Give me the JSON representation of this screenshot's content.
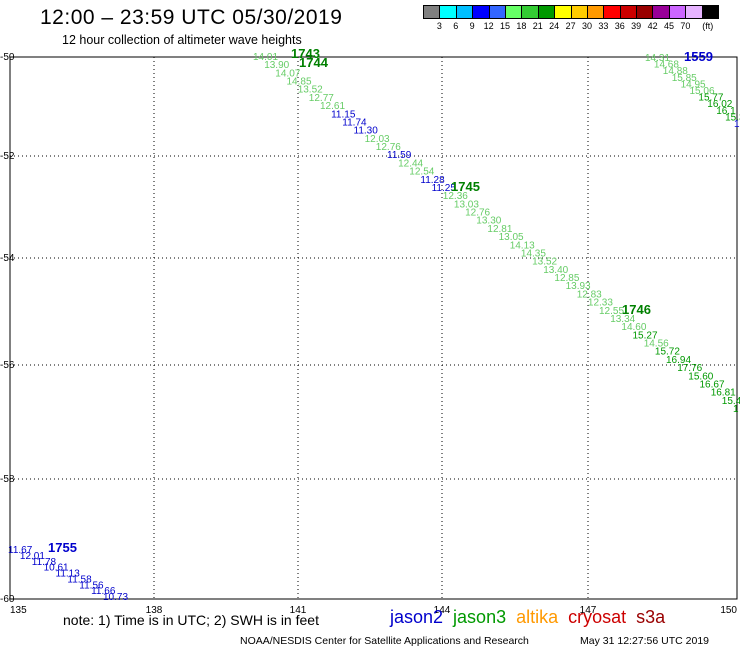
{
  "header": {
    "title": "12:00 – 23:59 UTC 05/30/2019",
    "subtitle": "12 hour collection of altimeter wave heights"
  },
  "colorbar": {
    "colors": [
      "#808080",
      "#00ffff",
      "#00bfff",
      "#0000ff",
      "#3366ff",
      "#66ff66",
      "#33cc33",
      "#009900",
      "#ffff00",
      "#ffcc00",
      "#ff9900",
      "#ff0000",
      "#cc0000",
      "#990000",
      "#990099",
      "#cc66ff",
      "#e6b3ff",
      "#000000"
    ],
    "labels": [
      "3",
      "6",
      "9",
      "12",
      "15",
      "18",
      "21",
      "24",
      "27",
      "30",
      "33",
      "36",
      "39",
      "42",
      "45",
      "70",
      "(ft)"
    ]
  },
  "axes": {
    "x_ticks": [
      "135",
      "138",
      "141",
      "144",
      "147",
      "150"
    ],
    "y_ticks": [
      "-50",
      "-52",
      "-54",
      "-56",
      "-58",
      "-60"
    ]
  },
  "passes": [
    {
      "label": "1743",
      "color": "#008000"
    },
    {
      "label": "1744",
      "color": "#008000"
    },
    {
      "label": "1745",
      "color": "#008000"
    },
    {
      "label": "1746",
      "color": "#008000"
    },
    {
      "label": "1559",
      "color": "#0000cc"
    },
    {
      "label": "1755",
      "color": "#0000cc"
    }
  ],
  "observations": {
    "track_a": [
      {
        "v": "14.01",
        "c": "#66cc66"
      },
      {
        "v": "13.90",
        "c": "#66cc66"
      },
      {
        "v": "14.07",
        "c": "#66cc66"
      },
      {
        "v": "14.85",
        "c": "#66cc66"
      },
      {
        "v": "13.52",
        "c": "#66cc66"
      },
      {
        "v": "12.77",
        "c": "#66cc66"
      },
      {
        "v": "12.61",
        "c": "#66cc66"
      },
      {
        "v": "11.15",
        "c": "#0000cc"
      },
      {
        "v": "11.74",
        "c": "#0000cc"
      },
      {
        "v": "11.30",
        "c": "#0000cc"
      },
      {
        "v": "12.03",
        "c": "#66cc66"
      },
      {
        "v": "12.76",
        "c": "#66cc66"
      },
      {
        "v": "11.59",
        "c": "#0000cc"
      },
      {
        "v": "12.44",
        "c": "#66cc66"
      },
      {
        "v": "12.54",
        "c": "#66cc66"
      },
      {
        "v": "11.28",
        "c": "#0000cc"
      },
      {
        "v": "11.25",
        "c": "#0000cc"
      },
      {
        "v": "12.36",
        "c": "#66cc66"
      },
      {
        "v": "13.03",
        "c": "#66cc66"
      },
      {
        "v": "12.76",
        "c": "#66cc66"
      },
      {
        "v": "13.30",
        "c": "#66cc66"
      },
      {
        "v": "12.81",
        "c": "#66cc66"
      },
      {
        "v": "13.05",
        "c": "#66cc66"
      },
      {
        "v": "14.13",
        "c": "#66cc66"
      },
      {
        "v": "14.35",
        "c": "#66cc66"
      },
      {
        "v": "13.52",
        "c": "#66cc66"
      },
      {
        "v": "13.40",
        "c": "#66cc66"
      },
      {
        "v": "12.85",
        "c": "#66cc66"
      },
      {
        "v": "13.93",
        "c": "#66cc66"
      },
      {
        "v": "12.83",
        "c": "#66cc66"
      },
      {
        "v": "12.33",
        "c": "#66cc66"
      },
      {
        "v": "12.55",
        "c": "#66cc66"
      },
      {
        "v": "13.34",
        "c": "#66cc66"
      },
      {
        "v": "14.60",
        "c": "#66cc66"
      },
      {
        "v": "15.27",
        "c": "#009900"
      },
      {
        "v": "14.56",
        "c": "#66cc66"
      },
      {
        "v": "15.72",
        "c": "#009900"
      },
      {
        "v": "16.94",
        "c": "#009900"
      },
      {
        "v": "17.76",
        "c": "#009900"
      },
      {
        "v": "15.60",
        "c": "#009900"
      },
      {
        "v": "16.67",
        "c": "#009900"
      },
      {
        "v": "16.81",
        "c": "#009900"
      },
      {
        "v": "15.4",
        "c": "#009900"
      },
      {
        "v": "1",
        "c": "#009900"
      }
    ],
    "track_b": [
      {
        "v": "14.31",
        "c": "#66cc66"
      },
      {
        "v": "14.68",
        "c": "#66cc66"
      },
      {
        "v": "14.88",
        "c": "#66cc66"
      },
      {
        "v": "15.85",
        "c": "#66cc66"
      },
      {
        "v": "14.95",
        "c": "#66cc66"
      },
      {
        "v": "15.06",
        "c": "#66cc66"
      },
      {
        "v": "15.77",
        "c": "#009900"
      },
      {
        "v": "16.02",
        "c": "#009900"
      },
      {
        "v": "16.1",
        "c": "#009900"
      },
      {
        "v": "15.3",
        "c": "#009900"
      },
      {
        "v": "1",
        "c": "#0000cc"
      }
    ],
    "track_c": [
      {
        "v": "11.67",
        "c": "#0000cc"
      },
      {
        "v": "12.01",
        "c": "#0000cc"
      },
      {
        "v": "11.78",
        "c": "#0000cc"
      },
      {
        "v": "10.61",
        "c": "#0000cc"
      },
      {
        "v": "11.13",
        "c": "#0000cc"
      },
      {
        "v": "11.58",
        "c": "#0000cc"
      },
      {
        "v": "11.56",
        "c": "#0000cc"
      },
      {
        "v": "11.66",
        "c": "#0000cc"
      },
      {
        "v": "10.73",
        "c": "#0000cc"
      }
    ]
  },
  "note": "note:  1) Time is in UTC; 2) SWH is in feet",
  "legend": [
    {
      "label": "jason2",
      "color": "#0000cc"
    },
    {
      "label": "jason3",
      "color": "#009900"
    },
    {
      "label": "altika",
      "color": "#ff9900"
    },
    {
      "label": "cryosat",
      "color": "#cc0000"
    },
    {
      "label": "s3a",
      "color": "#990000"
    }
  ],
  "footer": {
    "credit": "NOAA/NESDIS Center for Satellite Applications and Research",
    "timestamp": "May 31 12:27:56 UTC 2019"
  }
}
